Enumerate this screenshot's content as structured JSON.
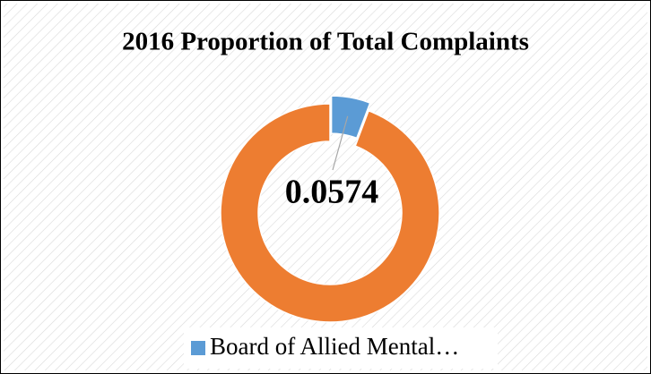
{
  "chart_data": {
    "type": "donut",
    "title": "2016 Proportion of Total Complaints",
    "categories": [
      "Board of Allied Mental…",
      null
    ],
    "values": [
      0.0574,
      0.9426
    ],
    "colors": [
      "#5b9bd5",
      "#ed7d31"
    ],
    "data_labels": [
      0
    ]
  }
}
